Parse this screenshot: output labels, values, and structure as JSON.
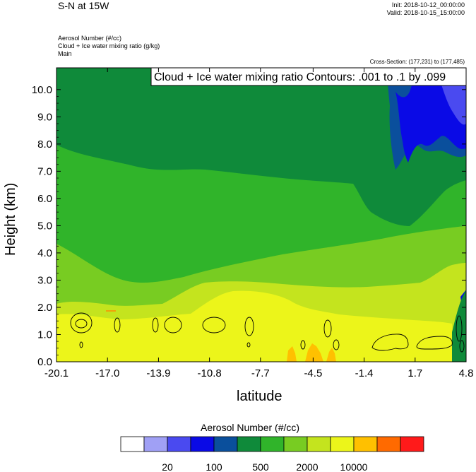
{
  "header": {
    "title": "S-N at 15W",
    "init": "Init: 2018-10-12_00:00:00",
    "valid": "Valid: 2018-10-15_15:00:00",
    "fields": [
      "Aerosol Number   (#/cc)",
      "Cloud + Ice water mixing ratio   (g/kg)",
      "Main"
    ],
    "cross_section": "Cross-Section: (177,231) to (177,485)"
  },
  "colors": {
    "levels": [
      "#ffffff",
      "#a0a0f5",
      "#4a4af0",
      "#0a0ae6",
      "#0a4f9c",
      "#0f8a3a",
      "#30b42a",
      "#78cc22",
      "#c4e41e",
      "#ecf51a",
      "#ffc000",
      "#ff6a00",
      "#ff1a1a"
    ]
  },
  "chart_data": {
    "type": "heatmap",
    "title": "S-N at 15W",
    "overlay_label": "Cloud + Ice water mixing ratio Contours: .001 to .1 by .099",
    "xlabel": "latitude",
    "ylabel": "Height (km)",
    "x_ticks": [
      "-20.1",
      "-17.0",
      "-13.9",
      "-10.8",
      "-7.7",
      "-4.5",
      "-1.4",
      "1.7",
      "4.8"
    ],
    "y_ticks": [
      "0.0",
      "1.0",
      "2.0",
      "3.0",
      "4.0",
      "5.0",
      "6.0",
      "7.0",
      "8.0",
      "9.0",
      "10.0"
    ],
    "xlim": [
      -20.1,
      4.8
    ],
    "ylim": [
      0,
      10.8
    ],
    "colorbar": {
      "title": "Aerosol Number  (#/cc)",
      "labels": [
        "20",
        "100",
        "500",
        "2000",
        "10000"
      ]
    },
    "regions": [
      {
        "level": 9,
        "description": "lowest layer 0-1 km, most of domain"
      },
      {
        "level": 8,
        "description": "layer ~1-2 km plus mid-level band in south"
      },
      {
        "level": 7,
        "description": "mid levels 2-7 km"
      },
      {
        "level": 5,
        "description": "upper levels 7-10.8 km"
      },
      {
        "level": 3,
        "description": "deep blue upper-right near 3-5N"
      },
      {
        "level": 10,
        "description": "orange patches near surface -5 to -2.5"
      }
    ]
  }
}
